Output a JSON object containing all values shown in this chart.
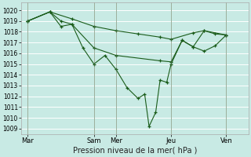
{
  "background_color": "#c8eae4",
  "grid_color": "#ffffff",
  "line_color": "#1a5c1a",
  "marker_color": "#1a5c1a",
  "xlabel": "Pression niveau de la mer( hPa )",
  "xlabel_fontsize": 7,
  "ylim": [
    1008.5,
    1020.7
  ],
  "yticks": [
    1009,
    1010,
    1011,
    1012,
    1013,
    1014,
    1015,
    1016,
    1017,
    1018,
    1019,
    1020
  ],
  "ytick_fontsize": 5.5,
  "xtick_labels": [
    "Mar",
    "Sam",
    "Mer",
    "Jeu",
    "Ven"
  ],
  "xtick_positions": [
    0.0,
    3.0,
    4.0,
    6.5,
    9.0
  ],
  "xlim": [
    -0.3,
    10.0
  ],
  "series": [
    {
      "x": [
        0.0,
        1.0,
        2.0,
        3.0,
        4.0,
        5.0,
        6.0,
        6.5,
        7.5,
        8.0,
        9.0
      ],
      "y": [
        1019.0,
        1019.85,
        1019.2,
        1018.5,
        1018.1,
        1017.8,
        1017.5,
        1017.3,
        1017.9,
        1018.1,
        1017.7
      ]
    },
    {
      "x": [
        0.0,
        1.0,
        1.5,
        2.0,
        3.0,
        4.0,
        6.0,
        6.5,
        7.0,
        7.5,
        8.0,
        8.5,
        9.0
      ],
      "y": [
        1019.0,
        1019.85,
        1019.0,
        1018.7,
        1016.5,
        1015.8,
        1015.3,
        1015.2,
        1017.2,
        1016.6,
        1018.1,
        1017.8,
        1017.7
      ]
    },
    {
      "x": [
        0.0,
        1.0,
        1.5,
        2.0,
        2.5,
        3.0,
        3.5,
        4.0,
        4.5,
        5.0,
        5.3,
        5.5,
        5.8,
        6.0,
        6.3,
        6.5,
        7.0,
        7.5,
        8.0,
        8.5,
        9.0
      ],
      "y": [
        1019.0,
        1019.85,
        1018.5,
        1018.7,
        1016.5,
        1015.0,
        1015.8,
        1014.5,
        1012.8,
        1011.8,
        1012.2,
        1009.2,
        1010.5,
        1013.5,
        1013.3,
        1015.0,
        1017.2,
        1016.6,
        1016.2,
        1016.7,
        1017.7
      ]
    }
  ]
}
